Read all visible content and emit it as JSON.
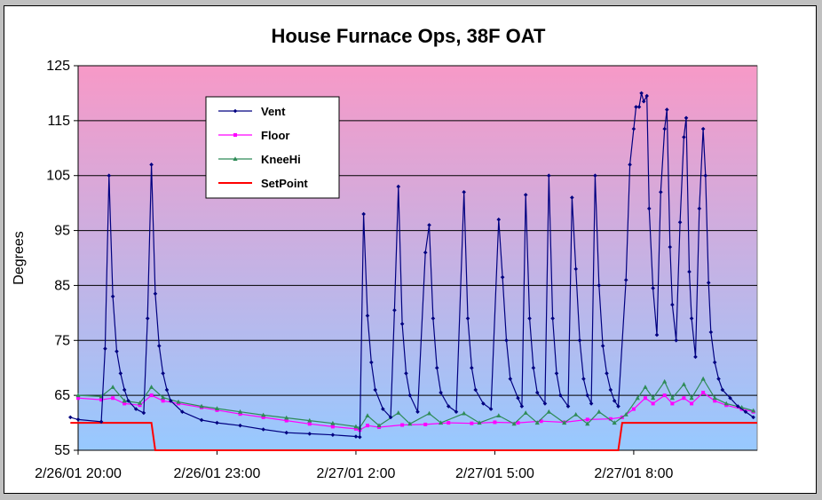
{
  "chart_data": {
    "type": "line",
    "title": "House Furnace Ops, 38F OAT",
    "xlabel": "",
    "ylabel": "Degrees",
    "ylim": [
      55,
      125
    ],
    "yticks": [
      55,
      65,
      75,
      85,
      95,
      105,
      115,
      125
    ],
    "xlim": [
      "2/26/01 20:00",
      "2/27/01 10:40"
    ],
    "xticks": [
      "2/26/01 20:00",
      "2/26/01 23:00",
      "2/27/01 2:00",
      "2/27/01 5:00",
      "2/27/01 8:00"
    ],
    "grid": "horizontal",
    "legend_position": "top-left",
    "background_gradient": [
      "#f799c7",
      "#97c9ff"
    ],
    "series": [
      {
        "name": "Vent",
        "color": "#000080",
        "marker": "diamond",
        "points": [
          [
            "2/26/01 19:50",
            61
          ],
          [
            "2/26/01 20:00",
            60.6
          ],
          [
            "2/26/01 20:30",
            60.2
          ],
          [
            "2/26/01 20:35",
            73.5
          ],
          [
            "2/26/01 20:40",
            105
          ],
          [
            "2/26/01 20:45",
            83
          ],
          [
            "2/26/01 20:50",
            73
          ],
          [
            "2/26/01 20:55",
            69
          ],
          [
            "2/26/01 21:00",
            66
          ],
          [
            "2/26/01 21:05",
            64
          ],
          [
            "2/26/01 21:15",
            62.5
          ],
          [
            "2/26/01 21:25",
            61.8
          ],
          [
            "2/26/01 21:30",
            79
          ],
          [
            "2/26/01 21:35",
            107
          ],
          [
            "2/26/01 21:40",
            83.5
          ],
          [
            "2/26/01 21:45",
            74
          ],
          [
            "2/26/01 21:50",
            69
          ],
          [
            "2/26/01 21:55",
            66
          ],
          [
            "2/26/01 22:00",
            64
          ],
          [
            "2/26/01 22:15",
            62
          ],
          [
            "2/26/01 22:40",
            60.5
          ],
          [
            "2/26/01 23:00",
            60
          ],
          [
            "2/26/01 23:30",
            59.5
          ],
          [
            "2/27/01 0:00",
            58.8
          ],
          [
            "2/27/01 0:30",
            58.2
          ],
          [
            "2/27/01 1:00",
            58
          ],
          [
            "2/27/01 1:30",
            57.8
          ],
          [
            "2/27/01 2:00",
            57.5
          ],
          [
            "2/27/01 2:05",
            57.4
          ],
          [
            "2/27/01 2:10",
            98
          ],
          [
            "2/27/01 2:15",
            79.5
          ],
          [
            "2/27/01 2:20",
            71
          ],
          [
            "2/27/01 2:25",
            66
          ],
          [
            "2/27/01 2:35",
            62.5
          ],
          [
            "2/27/01 2:45",
            61
          ],
          [
            "2/27/01 2:50",
            80.5
          ],
          [
            "2/27/01 2:55",
            103
          ],
          [
            "2/27/01 3:00",
            78
          ],
          [
            "2/27/01 3:05",
            69
          ],
          [
            "2/27/01 3:10",
            65
          ],
          [
            "2/27/01 3:20",
            62
          ],
          [
            "2/27/01 3:30",
            91
          ],
          [
            "2/27/01 3:35",
            96
          ],
          [
            "2/27/01 3:40",
            79
          ],
          [
            "2/27/01 3:45",
            70
          ],
          [
            "2/27/01 3:50",
            65.5
          ],
          [
            "2/27/01 4:00",
            63
          ],
          [
            "2/27/01 4:10",
            62
          ],
          [
            "2/27/01 4:20",
            102
          ],
          [
            "2/27/01 4:25",
            79
          ],
          [
            "2/27/01 4:30",
            70
          ],
          [
            "2/27/01 4:35",
            66
          ],
          [
            "2/27/01 4:45",
            63.5
          ],
          [
            "2/27/01 4:55",
            62.5
          ],
          [
            "2/27/01 5:05",
            97
          ],
          [
            "2/27/01 5:10",
            86.5
          ],
          [
            "2/27/01 5:15",
            75
          ],
          [
            "2/27/01 5:20",
            68
          ],
          [
            "2/27/01 5:30",
            64.5
          ],
          [
            "2/27/01 5:35",
            63
          ],
          [
            "2/27/01 5:40",
            101.5
          ],
          [
            "2/27/01 5:45",
            79
          ],
          [
            "2/27/01 5:50",
            70
          ],
          [
            "2/27/01 5:55",
            65.5
          ],
          [
            "2/27/01 6:05",
            63.5
          ],
          [
            "2/27/01 6:10",
            105
          ],
          [
            "2/27/01 6:15",
            79
          ],
          [
            "2/27/01 6:20",
            69
          ],
          [
            "2/27/01 6:25",
            65
          ],
          [
            "2/27/01 6:35",
            63
          ],
          [
            "2/27/01 6:40",
            101
          ],
          [
            "2/27/01 6:45",
            88
          ],
          [
            "2/27/01 6:50",
            75
          ],
          [
            "2/27/01 6:55",
            68
          ],
          [
            "2/27/01 7:00",
            65
          ],
          [
            "2/27/01 7:05",
            63.5
          ],
          [
            "2/27/01 7:10",
            105
          ],
          [
            "2/27/01 7:15",
            85
          ],
          [
            "2/27/01 7:20",
            74
          ],
          [
            "2/27/01 7:25",
            69
          ],
          [
            "2/27/01 7:30",
            66
          ],
          [
            "2/27/01 7:35",
            64
          ],
          [
            "2/27/01 7:40",
            63
          ],
          [
            "2/27/01 7:50",
            86
          ],
          [
            "2/27/01 7:55",
            107
          ],
          [
            "2/27/01 8:00",
            113.5
          ],
          [
            "2/27/01 8:03",
            117.5
          ],
          [
            "2/27/01 8:07",
            117.5
          ],
          [
            "2/27/01 8:10",
            120
          ],
          [
            "2/27/01 8:13",
            118.5
          ],
          [
            "2/27/01 8:17",
            119.5
          ],
          [
            "2/27/01 8:20",
            99
          ],
          [
            "2/27/01 8:25",
            84.5
          ],
          [
            "2/27/01 8:30",
            76
          ],
          [
            "2/27/01 8:35",
            102
          ],
          [
            "2/27/01 8:40",
            113.5
          ],
          [
            "2/27/01 8:43",
            117
          ],
          [
            "2/27/01 8:47",
            92
          ],
          [
            "2/27/01 8:50",
            81.5
          ],
          [
            "2/27/01 8:55",
            75
          ],
          [
            "2/27/01 9:00",
            96.5
          ],
          [
            "2/27/01 9:05",
            112
          ],
          [
            "2/27/01 9:08",
            115.5
          ],
          [
            "2/27/01 9:12",
            87.5
          ],
          [
            "2/27/01 9:15",
            79
          ],
          [
            "2/27/01 9:20",
            72
          ],
          [
            "2/27/01 9:25",
            99
          ],
          [
            "2/27/01 9:30",
            113.5
          ],
          [
            "2/27/01 9:33",
            105
          ],
          [
            "2/27/01 9:37",
            85.5
          ],
          [
            "2/27/01 9:40",
            76.5
          ],
          [
            "2/27/01 9:45",
            71
          ],
          [
            "2/27/01 9:50",
            68
          ],
          [
            "2/27/01 9:55",
            66
          ],
          [
            "2/27/01 10:05",
            64.5
          ],
          [
            "2/27/01 10:15",
            63
          ],
          [
            "2/27/01 10:25",
            62
          ],
          [
            "2/27/01 10:35",
            61
          ]
        ]
      },
      {
        "name": "Floor",
        "color": "#ff00ff",
        "marker": "square",
        "points": [
          [
            "2/26/01 20:00",
            64.5
          ],
          [
            "2/26/01 20:30",
            64.2
          ],
          [
            "2/26/01 20:45",
            64.5
          ],
          [
            "2/26/01 21:00",
            63.5
          ],
          [
            "2/26/01 21:20",
            63.2
          ],
          [
            "2/26/01 21:35",
            65
          ],
          [
            "2/26/01 21:50",
            64
          ],
          [
            "2/26/01 22:10",
            63.5
          ],
          [
            "2/26/01 22:40",
            62.8
          ],
          [
            "2/26/01 23:00",
            62.3
          ],
          [
            "2/26/01 23:30",
            61.6
          ],
          [
            "2/27/01 0:00",
            61
          ],
          [
            "2/27/01 0:30",
            60.4
          ],
          [
            "2/27/01 1:00",
            59.8
          ],
          [
            "2/27/01 1:30",
            59.3
          ],
          [
            "2/27/01 2:00",
            58.9
          ],
          [
            "2/27/01 2:05",
            58.7
          ],
          [
            "2/27/01 2:15",
            59.5
          ],
          [
            "2/27/01 2:30",
            59.2
          ],
          [
            "2/27/01 3:00",
            59.6
          ],
          [
            "2/27/01 3:30",
            59.7
          ],
          [
            "2/27/01 4:00",
            60
          ],
          [
            "2/27/01 4:30",
            59.9
          ],
          [
            "2/27/01 5:00",
            60.1
          ],
          [
            "2/27/01 5:30",
            60
          ],
          [
            "2/27/01 6:00",
            60.3
          ],
          [
            "2/27/01 6:30",
            60.1
          ],
          [
            "2/27/01 7:00",
            60.6
          ],
          [
            "2/27/01 7:30",
            60.7
          ],
          [
            "2/27/01 7:45",
            61
          ],
          [
            "2/27/01 8:00",
            62.5
          ],
          [
            "2/27/01 8:15",
            64.5
          ],
          [
            "2/27/01 8:25",
            63.5
          ],
          [
            "2/27/01 8:40",
            65
          ],
          [
            "2/27/01 8:50",
            63.5
          ],
          [
            "2/27/01 9:05",
            64.5
          ],
          [
            "2/27/01 9:15",
            63.5
          ],
          [
            "2/27/01 9:30",
            65.5
          ],
          [
            "2/27/01 9:45",
            64
          ],
          [
            "2/27/01 10:00",
            63.2
          ],
          [
            "2/27/01 10:20",
            62.5
          ],
          [
            "2/27/01 10:35",
            62
          ]
        ]
      },
      {
        "name": "KneeHi",
        "color": "#2e8b57",
        "marker": "triangle",
        "points": [
          [
            "2/26/01 20:00",
            65
          ],
          [
            "2/26/01 20:30",
            64.8
          ],
          [
            "2/26/01 20:45",
            66.5
          ],
          [
            "2/26/01 21:00",
            64
          ],
          [
            "2/26/01 21:20",
            63.6
          ],
          [
            "2/26/01 21:35",
            66.5
          ],
          [
            "2/26/01 21:50",
            64.6
          ],
          [
            "2/26/01 22:10",
            63.8
          ],
          [
            "2/26/01 22:40",
            63
          ],
          [
            "2/26/01 23:00",
            62.6
          ],
          [
            "2/26/01 23:30",
            62
          ],
          [
            "2/27/01 0:00",
            61.4
          ],
          [
            "2/27/01 0:30",
            60.9
          ],
          [
            "2/27/01 1:00",
            60.4
          ],
          [
            "2/27/01 1:30",
            59.9
          ],
          [
            "2/27/01 2:00",
            59.3
          ],
          [
            "2/27/01 2:05",
            59.1
          ],
          [
            "2/27/01 2:15",
            61.3
          ],
          [
            "2/27/01 2:30",
            59.5
          ],
          [
            "2/27/01 2:55",
            61.8
          ],
          [
            "2/27/01 3:10",
            59.8
          ],
          [
            "2/27/01 3:35",
            61.7
          ],
          [
            "2/27/01 3:50",
            60
          ],
          [
            "2/27/01 4:20",
            61.7
          ],
          [
            "2/27/01 4:40",
            60
          ],
          [
            "2/27/01 5:05",
            61.3
          ],
          [
            "2/27/01 5:25",
            59.8
          ],
          [
            "2/27/01 5:40",
            61.8
          ],
          [
            "2/27/01 5:55",
            60
          ],
          [
            "2/27/01 6:10",
            62
          ],
          [
            "2/27/01 6:30",
            60
          ],
          [
            "2/27/01 6:45",
            61.5
          ],
          [
            "2/27/01 7:00",
            59.8
          ],
          [
            "2/27/01 7:15",
            62
          ],
          [
            "2/27/01 7:35",
            60
          ],
          [
            "2/27/01 7:50",
            61.5
          ],
          [
            "2/27/01 8:05",
            64.5
          ],
          [
            "2/27/01 8:15",
            66.5
          ],
          [
            "2/27/01 8:25",
            64.5
          ],
          [
            "2/27/01 8:40",
            67.5
          ],
          [
            "2/27/01 8:50",
            64.5
          ],
          [
            "2/27/01 9:05",
            67
          ],
          [
            "2/27/01 9:15",
            64.5
          ],
          [
            "2/27/01 9:30",
            68
          ],
          [
            "2/27/01 9:45",
            64.5
          ],
          [
            "2/27/01 10:00",
            63.5
          ],
          [
            "2/27/01 10:20",
            62.8
          ],
          [
            "2/27/01 10:35",
            62.2
          ]
        ]
      },
      {
        "name": "SetPoint",
        "color": "#ff0000",
        "marker": "none",
        "points": [
          [
            "2/26/01 19:50",
            60
          ],
          [
            "2/26/01 21:35",
            60
          ],
          [
            "2/26/01 21:40",
            55
          ],
          [
            "2/27/01 7:40",
            55
          ],
          [
            "2/27/01 7:45",
            60
          ],
          [
            "2/27/01 10:40",
            60
          ]
        ]
      }
    ]
  }
}
